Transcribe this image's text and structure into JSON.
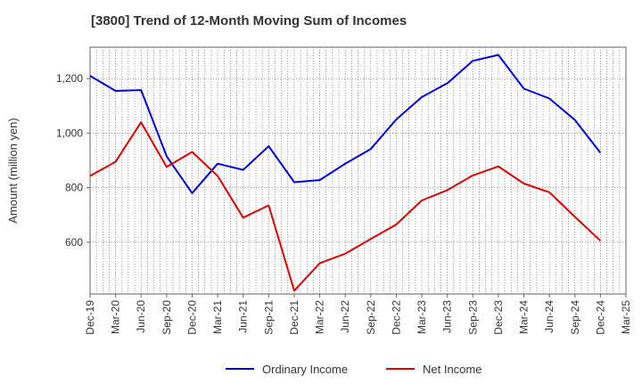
{
  "chart_data": {
    "type": "line",
    "title": "[3800]  Trend of 12-Month Moving Sum of Incomes",
    "xlabel": "",
    "ylabel": "Amount (million yen)",
    "ylim": [
      410,
      1315
    ],
    "yticks": [
      600,
      800,
      1000,
      1200
    ],
    "ytick_labels": [
      "600",
      "800",
      "1,000",
      "1,200"
    ],
    "categories": [
      "Dec-19",
      "Mar-20",
      "Jun-20",
      "Sep-20",
      "Dec-20",
      "Mar-21",
      "Jun-21",
      "Sep-21",
      "Dec-21",
      "Mar-22",
      "Jun-22",
      "Sep-22",
      "Dec-22",
      "Mar-23",
      "Jun-23",
      "Sep-23",
      "Dec-23",
      "Mar-24",
      "Jun-24",
      "Sep-24",
      "Dec-24",
      "Mar-25"
    ],
    "grid": true,
    "legend_position": "bottom",
    "series": [
      {
        "name": "Ordinary Income",
        "color": "#0000dd",
        "values": [
          1210,
          1155,
          1158,
          915,
          780,
          888,
          865,
          952,
          820,
          828,
          888,
          942,
          1050,
          1132,
          1183,
          1265,
          1287,
          1163,
          1127,
          1048,
          928,
          null
        ]
      },
      {
        "name": "Net Income",
        "color": "#dd0000",
        "values": [
          843,
          895,
          1040,
          876,
          931,
          843,
          690,
          735,
          422,
          523,
          558,
          612,
          665,
          753,
          791,
          845,
          878,
          815,
          783,
          693,
          605,
          null
        ]
      }
    ]
  }
}
